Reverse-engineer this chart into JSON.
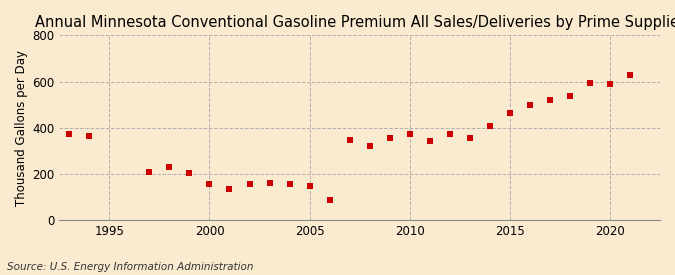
{
  "title": "Annual Minnesota Conventional Gasoline Premium All Sales/Deliveries by Prime Supplier",
  "ylabel": "Thousand Gallons per Day",
  "source": "Source: U.S. Energy Information Administration",
  "background_color": "#faebd0",
  "years": [
    1993,
    1994,
    1997,
    1998,
    1999,
    2000,
    2001,
    2002,
    2003,
    2004,
    2005,
    2006,
    2007,
    2008,
    2009,
    2010,
    2011,
    2012,
    2013,
    2014,
    2015,
    2016,
    2017,
    2018,
    2019,
    2020,
    2021
  ],
  "values": [
    375,
    363,
    207,
    228,
    202,
    158,
    135,
    158,
    160,
    158,
    148,
    88,
    345,
    323,
    355,
    375,
    342,
    372,
    357,
    407,
    463,
    500,
    520,
    538,
    595,
    590,
    628
  ],
  "marker_color": "#cc0000",
  "marker_size": 25,
  "xlim": [
    1992.5,
    2022.5
  ],
  "ylim": [
    0,
    800
  ],
  "yticks": [
    0,
    200,
    400,
    600,
    800
  ],
  "xticks": [
    1995,
    2000,
    2005,
    2010,
    2015,
    2020
  ],
  "grid_color": "#b0b0b0",
  "title_fontsize": 10.5,
  "label_fontsize": 8.5,
  "tick_fontsize": 8.5,
  "source_fontsize": 7.5
}
